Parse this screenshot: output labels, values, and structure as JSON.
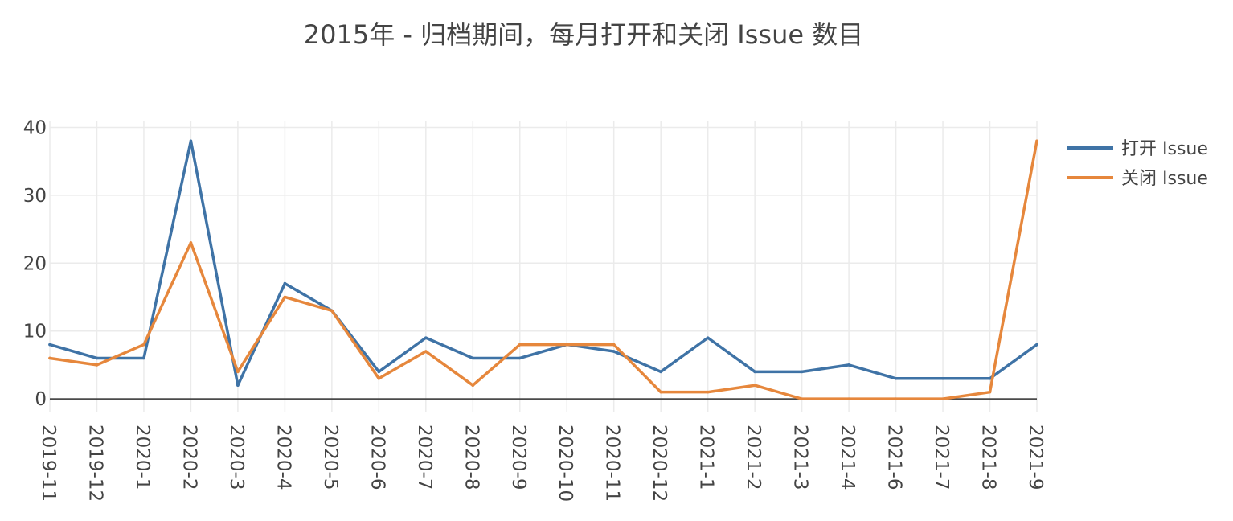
{
  "chart_data": {
    "type": "line",
    "title": "2015年 - 归档期间，每月打开和关闭 Issue 数目",
    "xlabel": "",
    "ylabel": "",
    "categories": [
      "2019-11",
      "2019-12",
      "2020-1",
      "2020-2",
      "2020-3",
      "2020-4",
      "2020-5",
      "2020-6",
      "2020-7",
      "2020-8",
      "2020-9",
      "2020-10",
      "2020-11",
      "2020-12",
      "2021-1",
      "2021-2",
      "2021-3",
      "2021-4",
      "2021-6",
      "2021-7",
      "2021-8",
      "2021-9"
    ],
    "ylim": [
      -2,
      41
    ],
    "yticks": [
      0,
      10,
      20,
      30,
      40
    ],
    "grid": true,
    "legend_position": "top-right",
    "series": [
      {
        "name": "打开 Issue",
        "color": "#3f73a6",
        "values": [
          8,
          6,
          6,
          38,
          2,
          17,
          13,
          4,
          9,
          6,
          6,
          8,
          7,
          4,
          9,
          4,
          4,
          5,
          3,
          3,
          3,
          8
        ]
      },
      {
        "name": "关闭 Issue",
        "color": "#e6873c",
        "values": [
          6,
          5,
          8,
          23,
          4,
          15,
          13,
          3,
          7,
          2,
          8,
          8,
          8,
          1,
          1,
          2,
          0,
          0,
          0,
          0,
          1,
          38
        ]
      }
    ]
  }
}
